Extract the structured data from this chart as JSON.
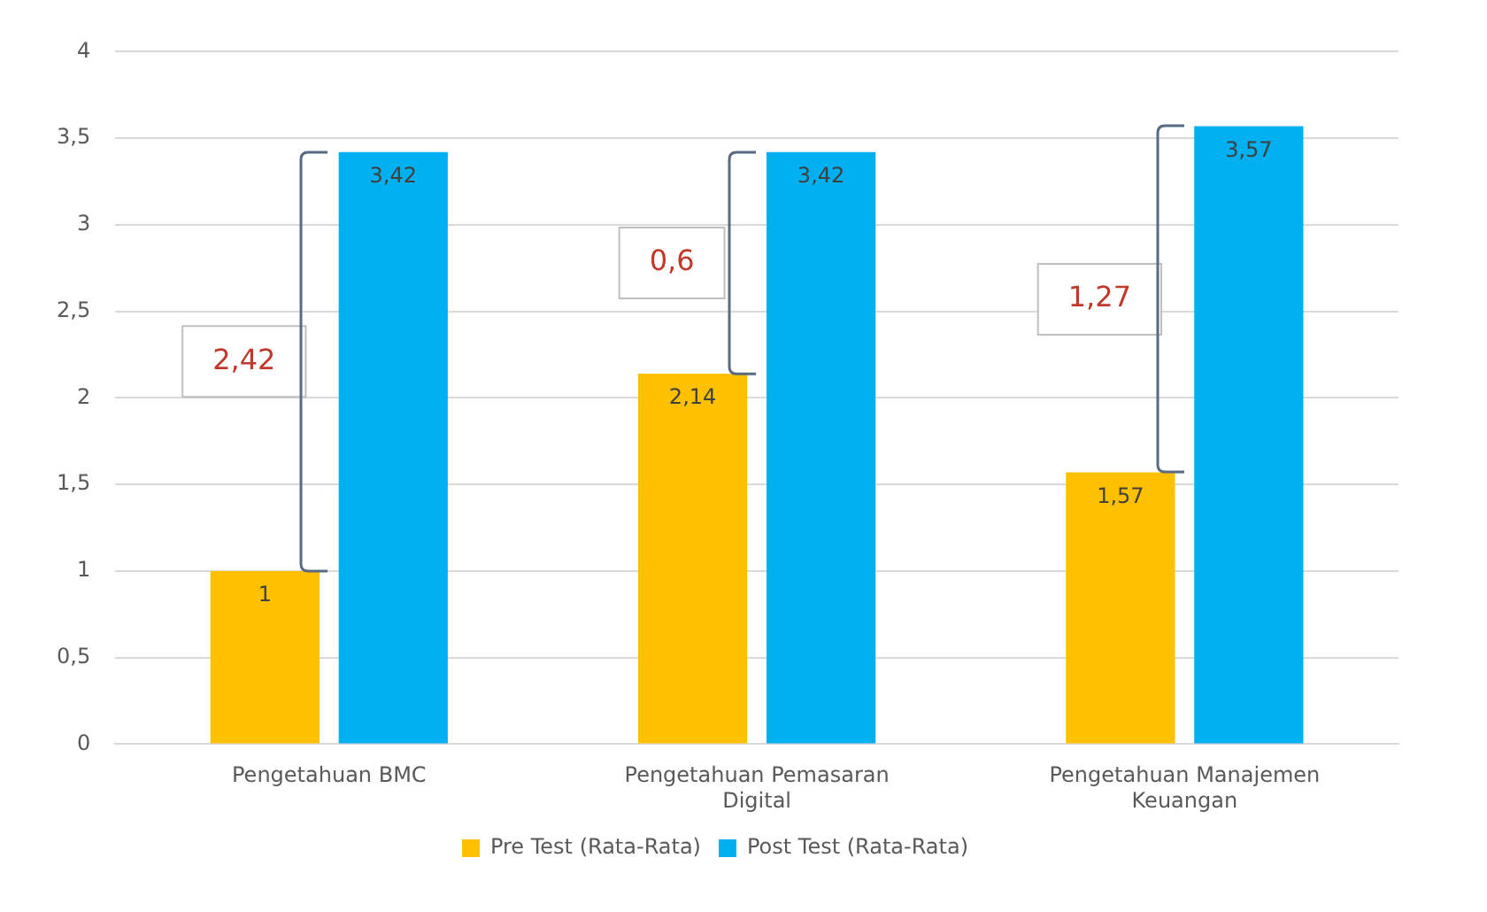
{
  "chart_data": {
    "type": "bar",
    "categories": [
      "Pengetahuan BMC",
      "Pengetahuan Pemasaran Digital",
      "Pengetahuan Manajemen Keuangan"
    ],
    "series": [
      {
        "name": "Pre Test (Rata-Rata)",
        "color": "#ffc000",
        "values": [
          1,
          2.14,
          1.57
        ],
        "value_labels": [
          "1",
          "2,14",
          "1,57"
        ]
      },
      {
        "name": "Post Test (Rata-Rata)",
        "color": "#00b0f0",
        "values": [
          3.42,
          3.42,
          3.57
        ],
        "value_labels": [
          "3,42",
          "3,42",
          "3,57"
        ]
      }
    ],
    "ylim": [
      0,
      4
    ],
    "yticks": [
      0,
      {
        "value": 0.5,
        "label": "0,5"
      },
      1,
      {
        "value": 1.5,
        "label": "1,5"
      },
      2,
      {
        "value": 2.5,
        "label": "2,5"
      },
      3,
      {
        "value": 3.5,
        "label": "3,5"
      },
      4
    ],
    "grid": "y",
    "legend": "bottom",
    "annotations": [
      "2,42",
      "0,6",
      "1,27"
    ]
  }
}
